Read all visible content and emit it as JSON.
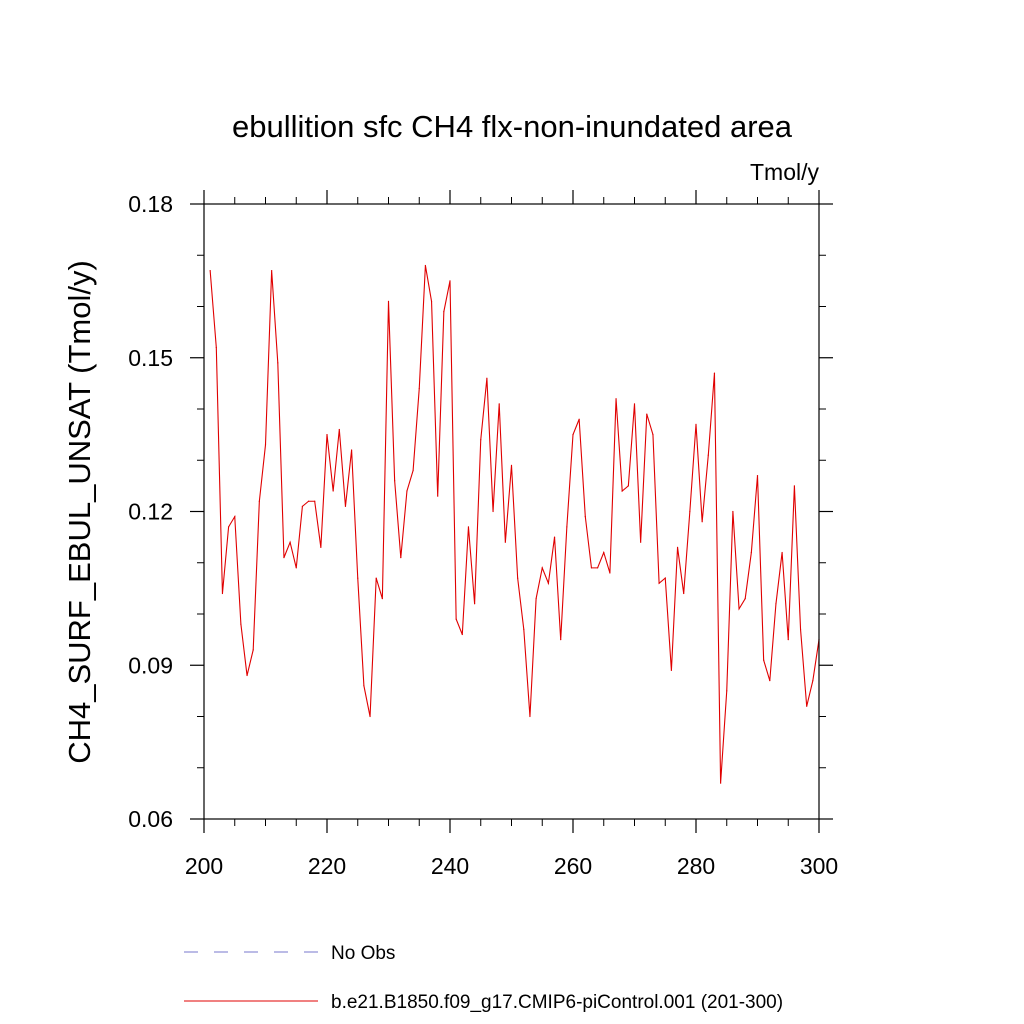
{
  "chart_data": {
    "type": "line",
    "title": "ebullition sfc CH4 flx-non-inundated area",
    "units_label": "Tmol/y",
    "xlabel": "",
    "ylabel": "CH4_SURF_EBUL_UNSAT  (Tmol/y)",
    "xlim": [
      200,
      300
    ],
    "ylim": [
      0.06,
      0.18
    ],
    "xticks": [
      200,
      220,
      240,
      260,
      280,
      300
    ],
    "xtick_labels": [
      "200",
      "220",
      "240",
      "260",
      "280",
      "300"
    ],
    "yticks": [
      0.06,
      0.09,
      0.12,
      0.15,
      0.18
    ],
    "ytick_labels": [
      "0.06",
      "0.09",
      "0.12",
      "0.15",
      "0.18"
    ],
    "grid": false,
    "legend_position": "bottom",
    "series": [
      {
        "name": "b.e21.B1850.f09_g17.CMIP6-piControl.001 (201-300)",
        "color": "#e00000",
        "x": [
          201,
          202,
          203,
          204,
          205,
          206,
          207,
          208,
          209,
          210,
          211,
          212,
          213,
          214,
          215,
          216,
          217,
          218,
          219,
          220,
          221,
          222,
          223,
          224,
          225,
          226,
          227,
          228,
          229,
          230,
          231,
          232,
          233,
          234,
          235,
          236,
          237,
          238,
          239,
          240,
          241,
          242,
          243,
          244,
          245,
          246,
          247,
          248,
          249,
          250,
          251,
          252,
          253,
          254,
          255,
          256,
          257,
          258,
          259,
          260,
          261,
          262,
          263,
          264,
          265,
          266,
          267,
          268,
          269,
          270,
          271,
          272,
          273,
          274,
          275,
          276,
          277,
          278,
          279,
          280,
          281,
          282,
          283,
          284,
          285,
          286,
          287,
          288,
          289,
          290,
          291,
          292,
          293,
          294,
          295,
          296,
          297,
          298,
          299,
          300
        ],
        "values": [
          0.167,
          0.152,
          0.104,
          0.117,
          0.119,
          0.098,
          0.088,
          0.093,
          0.122,
          0.133,
          0.167,
          0.149,
          0.111,
          0.114,
          0.109,
          0.121,
          0.122,
          0.122,
          0.113,
          0.135,
          0.124,
          0.136,
          0.121,
          0.132,
          0.107,
          0.086,
          0.08,
          0.107,
          0.103,
          0.161,
          0.126,
          0.111,
          0.124,
          0.128,
          0.144,
          0.168,
          0.161,
          0.123,
          0.159,
          0.165,
          0.099,
          0.096,
          0.117,
          0.102,
          0.134,
          0.146,
          0.12,
          0.141,
          0.114,
          0.129,
          0.107,
          0.097,
          0.08,
          0.103,
          0.109,
          0.106,
          0.115,
          0.095,
          0.117,
          0.135,
          0.138,
          0.119,
          0.109,
          0.109,
          0.112,
          0.108,
          0.142,
          0.124,
          0.125,
          0.141,
          0.114,
          0.139,
          0.135,
          0.106,
          0.107,
          0.089,
          0.113,
          0.104,
          0.12,
          0.137,
          0.118,
          0.131,
          0.147,
          0.067,
          0.085,
          0.12,
          0.101,
          0.103,
          0.112,
          0.127,
          0.091,
          0.087,
          0.102,
          0.112,
          0.095,
          0.125,
          0.097,
          0.082,
          0.087,
          0.095
        ]
      }
    ],
    "legend": [
      {
        "label": "No Obs",
        "style": "dashed",
        "color": "#7777cc"
      },
      {
        "label": "b.e21.B1850.f09_g17.CMIP6-piControl.001 (201-300)",
        "style": "solid",
        "color": "#e00000"
      }
    ]
  }
}
